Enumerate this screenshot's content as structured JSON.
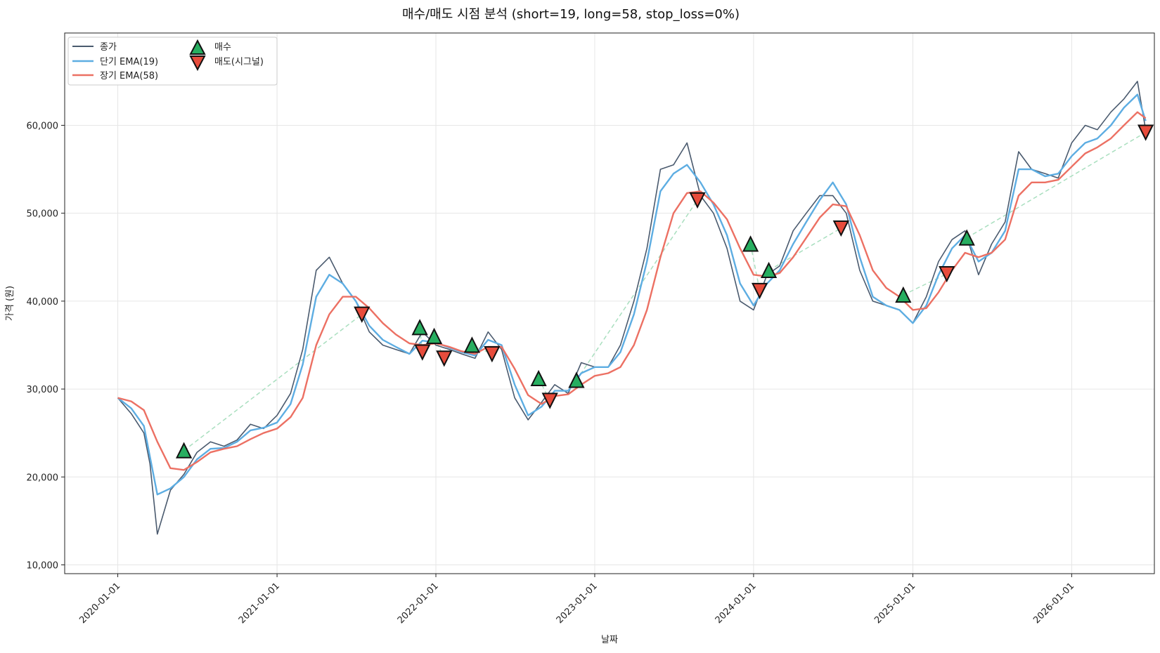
{
  "colors": {
    "close": "#4a5a6e",
    "ema_short": "#5dade2",
    "ema_long": "#ec7063",
    "buy": "#27ae60",
    "sell": "#e74c3c",
    "connector": "#a9dfbf",
    "grid": "#e6e6e6",
    "frame": "#222222"
  },
  "chart_data": {
    "type": "line",
    "title": "매수/매도 시점 분석 (short=19, long=58, stop_loss=0%)",
    "xlabel": "날짜",
    "ylabel": "가격 (원)",
    "x_range": [
      "2019-09-01",
      "2026-07-10"
    ],
    "ylim": [
      9000,
      70500
    ],
    "x_ticks": [
      "2020-01-01",
      "2021-01-01",
      "2022-01-01",
      "2023-01-01",
      "2024-01-01",
      "2025-01-01",
      "2026-01-01"
    ],
    "y_ticks": [
      10000,
      20000,
      30000,
      40000,
      50000,
      60000
    ],
    "y_tick_labels": [
      "10,000",
      "20,000",
      "30,000",
      "40,000",
      "50,000",
      "60,000"
    ],
    "grid": true,
    "legend": {
      "position": "top-left",
      "entries": [
        "종가",
        "단기 EMA(19)",
        "장기 EMA(58)",
        "매수",
        "매도(시그널)"
      ]
    },
    "series": [
      {
        "name": "종가",
        "x": [
          "2020-01-01",
          "2020-02-01",
          "2020-03-01",
          "2020-03-15",
          "2020-04-01",
          "2020-05-01",
          "2020-06-01",
          "2020-07-01",
          "2020-08-01",
          "2020-09-01",
          "2020-10-01",
          "2020-11-01",
          "2020-12-01",
          "2021-01-01",
          "2021-02-01",
          "2021-03-01",
          "2021-04-01",
          "2021-05-01",
          "2021-06-01",
          "2021-07-01",
          "2021-08-01",
          "2021-09-01",
          "2021-10-01",
          "2021-11-01",
          "2021-12-01",
          "2022-01-01",
          "2022-02-01",
          "2022-03-01",
          "2022-04-01",
          "2022-05-01",
          "2022-06-01",
          "2022-07-01",
          "2022-08-01",
          "2022-09-01",
          "2022-10-01",
          "2022-11-01",
          "2022-12-01",
          "2023-01-01",
          "2023-02-01",
          "2023-03-01",
          "2023-04-01",
          "2023-05-01",
          "2023-06-01",
          "2023-07-01",
          "2023-08-01",
          "2023-09-01",
          "2023-10-01",
          "2023-11-01",
          "2023-12-01",
          "2024-01-01",
          "2024-02-01",
          "2024-03-01",
          "2024-04-01",
          "2024-05-01",
          "2024-06-01",
          "2024-07-01",
          "2024-08-01",
          "2024-09-01",
          "2024-10-01",
          "2024-11-01",
          "2024-12-01",
          "2025-01-01",
          "2025-02-01",
          "2025-03-01",
          "2025-04-01",
          "2025-05-01",
          "2025-06-01",
          "2025-07-01",
          "2025-08-01",
          "2025-09-01",
          "2025-10-01",
          "2025-11-01",
          "2025-12-01",
          "2026-01-01",
          "2026-02-01",
          "2026-03-01",
          "2026-04-01",
          "2026-05-01",
          "2026-06-01",
          "2026-06-20"
        ],
        "values": [
          29000,
          27200,
          25000,
          21500,
          13500,
          18500,
          20300,
          22800,
          24000,
          23500,
          24200,
          26000,
          25500,
          27000,
          29500,
          34500,
          43500,
          45000,
          42000,
          40000,
          36500,
          35000,
          34500,
          34000,
          36500,
          35000,
          34500,
          34000,
          33500,
          36500,
          34500,
          29000,
          26500,
          28500,
          30500,
          29500,
          33000,
          32500,
          32500,
          35000,
          40000,
          46000,
          55000,
          55500,
          58000,
          52000,
          50000,
          46000,
          40000,
          39000,
          43000,
          44000,
          48000,
          50000,
          52000,
          52000,
          50000,
          43500,
          40000,
          39500,
          39000,
          37500,
          40500,
          44500,
          47000,
          48000,
          43000,
          46500,
          49000,
          57000,
          55000,
          54500,
          54000,
          58000,
          60000,
          59500,
          61500,
          63000,
          65000,
          59500
        ]
      },
      {
        "name": "단기 EMA(19)",
        "x": [
          "2020-01-01",
          "2020-02-01",
          "2020-03-01",
          "2020-04-01",
          "2020-05-01",
          "2020-06-01",
          "2020-07-01",
          "2020-08-01",
          "2020-09-01",
          "2020-10-01",
          "2020-11-01",
          "2020-12-01",
          "2021-01-01",
          "2021-02-01",
          "2021-03-01",
          "2021-04-01",
          "2021-05-01",
          "2021-06-01",
          "2021-07-01",
          "2021-08-01",
          "2021-09-01",
          "2021-10-01",
          "2021-11-01",
          "2021-12-01",
          "2022-01-01",
          "2022-02-01",
          "2022-03-01",
          "2022-04-01",
          "2022-05-01",
          "2022-06-01",
          "2022-07-01",
          "2022-08-01",
          "2022-09-01",
          "2022-10-01",
          "2022-11-01",
          "2022-12-01",
          "2023-01-01",
          "2023-02-01",
          "2023-03-01",
          "2023-04-01",
          "2023-05-01",
          "2023-06-01",
          "2023-07-01",
          "2023-08-01",
          "2023-09-01",
          "2023-10-01",
          "2023-11-01",
          "2023-12-01",
          "2024-01-01",
          "2024-02-01",
          "2024-03-01",
          "2024-04-01",
          "2024-05-01",
          "2024-06-01",
          "2024-07-01",
          "2024-08-01",
          "2024-09-01",
          "2024-10-01",
          "2024-11-01",
          "2024-12-01",
          "2025-01-01",
          "2025-02-01",
          "2025-03-01",
          "2025-04-01",
          "2025-05-01",
          "2025-06-01",
          "2025-07-01",
          "2025-08-01",
          "2025-09-01",
          "2025-10-01",
          "2025-11-01",
          "2025-12-01",
          "2026-01-01",
          "2026-02-01",
          "2026-03-01",
          "2026-04-01",
          "2026-05-01",
          "2026-06-01",
          "2026-06-20"
        ],
        "values": [
          29000,
          27800,
          25800,
          18000,
          18700,
          20000,
          22000,
          23200,
          23300,
          24000,
          25300,
          25600,
          26200,
          28300,
          32800,
          40500,
          43000,
          42000,
          40000,
          37200,
          35600,
          34800,
          34000,
          35500,
          35300,
          34700,
          34200,
          33800,
          35600,
          35000,
          30500,
          27000,
          28000,
          29800,
          29800,
          31800,
          32500,
          32500,
          34200,
          38500,
          44500,
          52500,
          54500,
          55500,
          53500,
          51000,
          47500,
          42000,
          39500,
          42000,
          43500,
          46500,
          49000,
          51500,
          53500,
          51000,
          45000,
          40500,
          39500,
          39000,
          37500,
          39500,
          43000,
          46000,
          47500,
          44500,
          45500,
          48000,
          55000,
          55000,
          54200,
          54500,
          56500,
          58000,
          58500,
          60000,
          62000,
          63500,
          60500
        ]
      },
      {
        "name": "장기 EMA(58)",
        "x": [
          "2020-01-01",
          "2020-02-01",
          "2020-03-01",
          "2020-04-01",
          "2020-05-01",
          "2020-06-01",
          "2020-07-01",
          "2020-08-01",
          "2020-09-01",
          "2020-10-01",
          "2020-11-01",
          "2020-12-01",
          "2021-01-01",
          "2021-02-01",
          "2021-03-01",
          "2021-04-01",
          "2021-05-01",
          "2021-06-01",
          "2021-07-01",
          "2021-08-01",
          "2021-09-01",
          "2021-10-01",
          "2021-11-01",
          "2021-12-01",
          "2022-01-01",
          "2022-02-01",
          "2022-03-01",
          "2022-04-01",
          "2022-05-01",
          "2022-06-01",
          "2022-07-01",
          "2022-08-01",
          "2022-09-01",
          "2022-10-01",
          "2022-11-01",
          "2022-12-01",
          "2023-01-01",
          "2023-02-01",
          "2023-03-01",
          "2023-04-01",
          "2023-05-01",
          "2023-06-01",
          "2023-07-01",
          "2023-08-01",
          "2023-09-01",
          "2023-10-01",
          "2023-11-01",
          "2023-12-01",
          "2024-01-01",
          "2024-02-01",
          "2024-03-01",
          "2024-04-01",
          "2024-05-01",
          "2024-06-01",
          "2024-07-01",
          "2024-08-01",
          "2024-09-01",
          "2024-10-01",
          "2024-11-01",
          "2024-12-01",
          "2025-01-01",
          "2025-02-01",
          "2025-03-01",
          "2025-04-01",
          "2025-05-01",
          "2025-06-01",
          "2025-07-01",
          "2025-08-01",
          "2025-09-01",
          "2025-10-01",
          "2025-11-01",
          "2025-12-01",
          "2026-01-01",
          "2026-02-01",
          "2026-03-01",
          "2026-04-01",
          "2026-05-01",
          "2026-06-01",
          "2026-06-20"
        ],
        "values": [
          29000,
          28600,
          27600,
          24000,
          21000,
          20800,
          21700,
          22800,
          23200,
          23500,
          24300,
          25000,
          25500,
          26800,
          29000,
          35000,
          38500,
          40500,
          40500,
          39200,
          37500,
          36200,
          35200,
          35000,
          35200,
          34800,
          34300,
          34000,
          34800,
          34800,
          32300,
          29300,
          28300,
          29200,
          29400,
          30500,
          31500,
          31800,
          32500,
          35000,
          39000,
          45000,
          50000,
          52300,
          52500,
          51200,
          49300,
          46000,
          43000,
          42800,
          43200,
          45000,
          47200,
          49500,
          51000,
          50800,
          47500,
          43500,
          41500,
          40500,
          39000,
          39200,
          41000,
          43500,
          45500,
          45000,
          45500,
          47000,
          52000,
          53500,
          53500,
          53800,
          55300,
          56800,
          57500,
          58500,
          60000,
          61500,
          60800
        ]
      }
    ],
    "connectors": [
      [
        [
          "2020-06-01",
          23000
        ],
        [
          "2021-07-15",
          38500
        ]
      ],
      [
        [
          "2021-11-25",
          37000
        ],
        [
          "2021-12-01",
          34200
        ]
      ],
      [
        [
          "2021-12-28",
          36000
        ],
        [
          "2022-01-20",
          33500
        ]
      ],
      [
        [
          "2022-03-25",
          35000
        ],
        [
          "2022-05-10",
          34000
        ]
      ],
      [
        [
          "2022-08-25",
          31200
        ],
        [
          "2022-09-20",
          28700
        ]
      ],
      [
        [
          "2022-11-20",
          31000
        ],
        [
          "2023-08-25",
          51500
        ]
      ],
      [
        [
          "2023-12-25",
          46500
        ],
        [
          "2024-01-15",
          41200
        ]
      ],
      [
        [
          "2024-02-05",
          43500
        ],
        [
          "2024-07-20",
          48300
        ]
      ],
      [
        [
          "2024-12-10",
          40700
        ],
        [
          "2025-03-20",
          43100
        ]
      ],
      [
        [
          "2025-05-05",
          47200
        ],
        [
          "2026-06-20",
          59200
        ]
      ]
    ],
    "buy_points": {
      "x": [
        "2020-06-01",
        "2021-11-25",
        "2021-12-28",
        "2022-03-25",
        "2022-08-25",
        "2022-11-20",
        "2023-12-25",
        "2024-02-05",
        "2024-12-10",
        "2025-05-05"
      ],
      "y": [
        23000,
        37000,
        36000,
        35000,
        31200,
        31000,
        46500,
        43500,
        40700,
        47200
      ]
    },
    "sell_points": {
      "x": [
        "2021-07-15",
        "2021-12-01",
        "2022-01-20",
        "2022-05-10",
        "2022-09-20",
        "2023-08-25",
        "2024-01-15",
        "2024-07-20",
        "2025-03-20",
        "2026-06-20"
      ],
      "y": [
        38500,
        34200,
        33500,
        34000,
        28700,
        51500,
        41200,
        48300,
        43100,
        59200
      ]
    }
  }
}
